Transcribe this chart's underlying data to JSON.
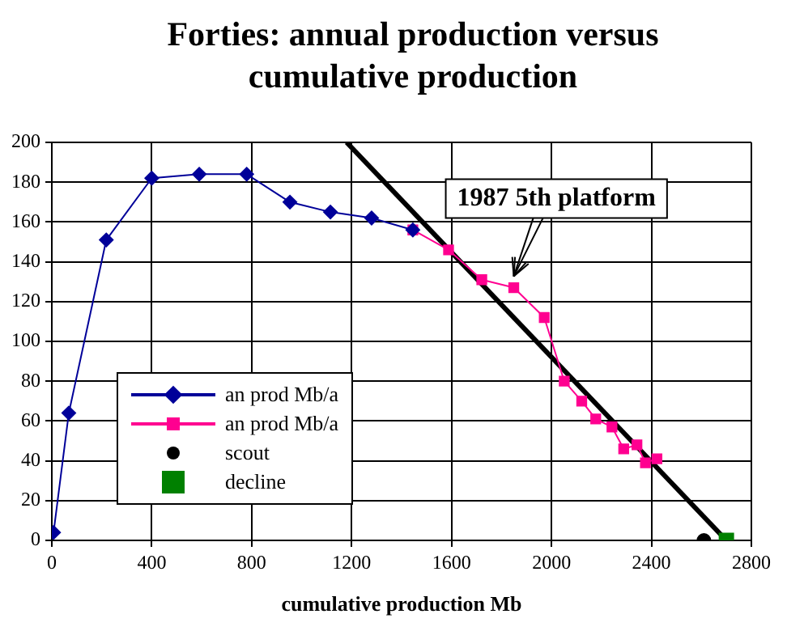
{
  "chart_data": {
    "type": "line",
    "title": "Forties: annual production versus cumulative production",
    "xlabel": "cumulative production Mb",
    "xlim": [
      0,
      2800
    ],
    "xticks": [
      0,
      400,
      800,
      1200,
      1600,
      2000,
      2400,
      2800
    ],
    "ylim": [
      0,
      200
    ],
    "yticks": [
      0,
      20,
      40,
      60,
      80,
      100,
      120,
      140,
      160,
      180,
      200
    ],
    "grid": true,
    "legend": "bottom left",
    "line_style": "solid",
    "series": [
      {
        "name": "an prod Mb/a",
        "type": "line",
        "marker": "diamond",
        "color": "#000099",
        "x": [
          7,
          68,
          218,
          400,
          590,
          780,
          953,
          1115,
          1280,
          1445
        ],
        "values": [
          4,
          64,
          151,
          182,
          184,
          184,
          170,
          165,
          162,
          156
        ]
      },
      {
        "name": "an prod Mb/a",
        "type": "line",
        "marker": "square",
        "color": "#ff0090",
        "x": [
          1445,
          1588,
          1721,
          1849,
          1971,
          2051,
          2121,
          2177,
          2242,
          2289,
          2342,
          2376,
          2422
        ],
        "values": [
          156,
          146,
          131,
          127,
          112,
          80,
          70,
          61,
          57,
          46,
          48,
          39,
          41
        ]
      },
      {
        "name": "scout",
        "type": "scatter",
        "marker": "circle",
        "color": "#000000",
        "x": [
          2610
        ],
        "values": [
          0
        ]
      },
      {
        "name": "decline",
        "type": "scatter",
        "marker": "square",
        "color": "#008000",
        "x": [
          2700
        ],
        "values": [
          0
        ]
      },
      {
        "type": "line",
        "marker": "none",
        "color": "#000000",
        "x": [
          1180,
          2700
        ],
        "values": [
          200,
          0
        ]
      }
    ],
    "annotations": [
      {
        "text": "1987 5th platform",
        "x": 1849,
        "y": 127
      }
    ]
  }
}
